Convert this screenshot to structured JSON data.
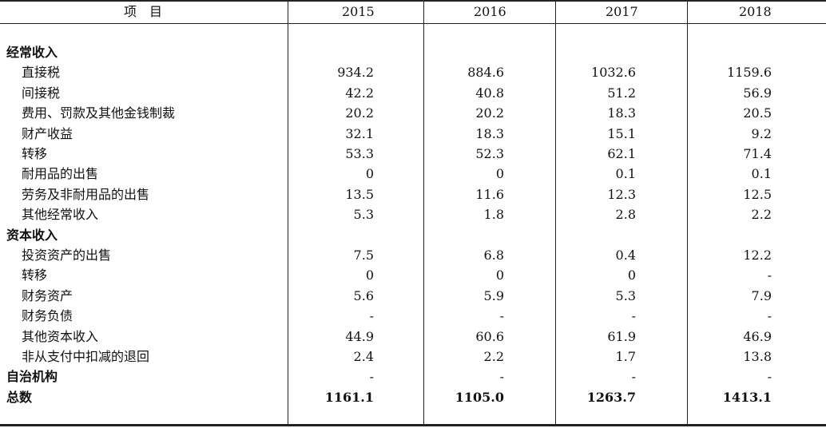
{
  "header": {
    "item_label": "项　目",
    "years": [
      "2015",
      "2016",
      "2017",
      "2018"
    ]
  },
  "rows": [
    {
      "label": "经常收入",
      "type": "section",
      "values": [
        "",
        "",
        "",
        ""
      ]
    },
    {
      "label": "直接税",
      "type": "item",
      "values": [
        "934.2",
        "884.6",
        "1032.6",
        "1159.6"
      ]
    },
    {
      "label": "间接税",
      "type": "item",
      "values": [
        "42.2",
        "40.8",
        "51.2",
        "56.9"
      ]
    },
    {
      "label": "费用、罚款及其他金钱制裁",
      "type": "item",
      "values": [
        "20.2",
        "20.2",
        "18.3",
        "20.5"
      ]
    },
    {
      "label": "财产收益",
      "type": "item",
      "values": [
        "32.1",
        "18.3",
        "15.1",
        "9.2"
      ]
    },
    {
      "label": "转移",
      "type": "item",
      "values": [
        "53.3",
        "52.3",
        "62.1",
        "71.4"
      ]
    },
    {
      "label": "耐用品的出售",
      "type": "item",
      "values": [
        "0",
        "0",
        "0.1",
        "0.1"
      ]
    },
    {
      "label": "劳务及非耐用品的出售",
      "type": "item",
      "values": [
        "13.5",
        "11.6",
        "12.3",
        "12.5"
      ]
    },
    {
      "label": "其他经常收入",
      "type": "item",
      "values": [
        "5.3",
        "1.8",
        "2.8",
        "2.2"
      ]
    },
    {
      "label": "资本收入",
      "type": "section",
      "values": [
        "",
        "",
        "",
        ""
      ]
    },
    {
      "label": "投资资产的出售",
      "type": "item",
      "values": [
        "7.5",
        "6.8",
        "0.4",
        "12.2"
      ]
    },
    {
      "label": "转移",
      "type": "item",
      "values": [
        "0",
        "0",
        "0",
        "-"
      ]
    },
    {
      "label": "财务资产",
      "type": "item",
      "values": [
        "5.6",
        "5.9",
        "5.3",
        "7.9"
      ]
    },
    {
      "label": "财务负债",
      "type": "item",
      "values": [
        "-",
        "-",
        "-",
        "-"
      ]
    },
    {
      "label": "其他资本收入",
      "type": "item",
      "values": [
        "44.9",
        "60.6",
        "61.9",
        "46.9"
      ]
    },
    {
      "label": "非从支付中扣减的退回",
      "type": "item",
      "values": [
        "2.4",
        "2.2",
        "1.7",
        "13.8"
      ]
    },
    {
      "label": "自治机构",
      "type": "section",
      "values": [
        "-",
        "-",
        "-",
        "-"
      ]
    },
    {
      "label": "总数",
      "type": "section",
      "values": [
        "1161.1",
        "1105.0",
        "1263.7",
        "1413.1"
      ],
      "bold": true
    }
  ]
}
